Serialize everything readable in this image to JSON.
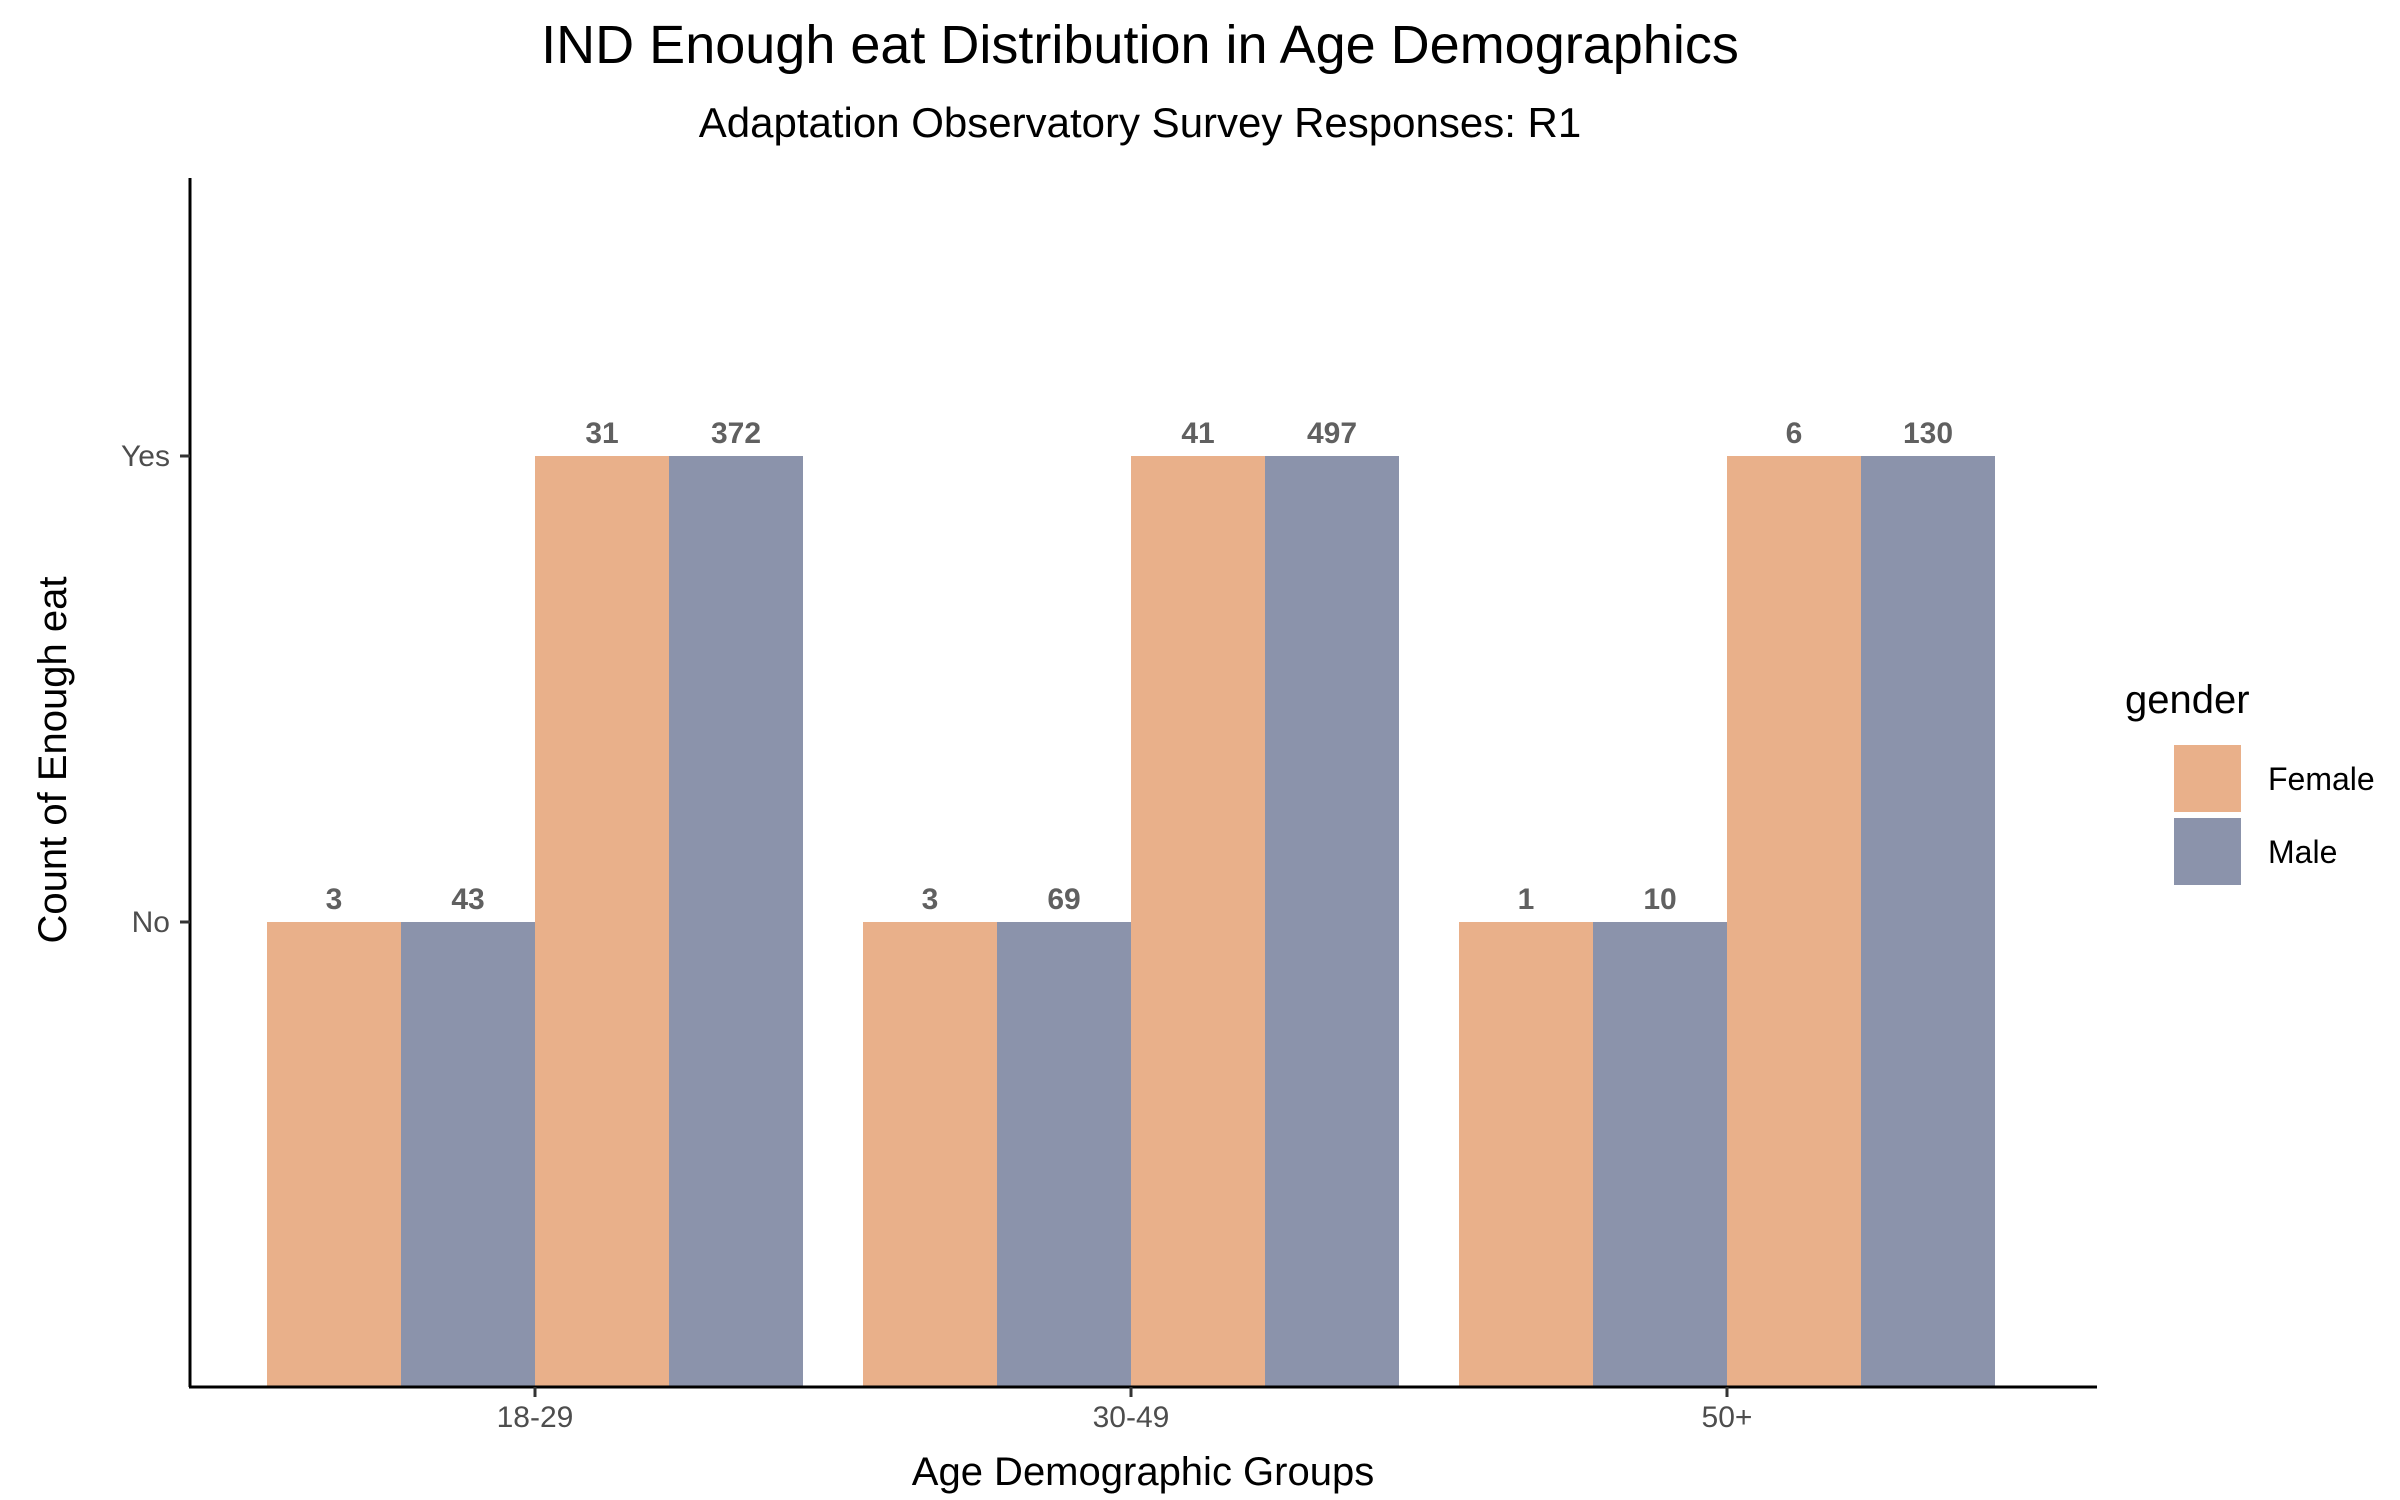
{
  "chart_data": {
    "type": "bar",
    "title": "IND Enough eat Distribution in Age Demographics",
    "subtitle": "Adaptation Observatory Survey Responses: R1",
    "xlabel": "Age Demographic Groups",
    "ylabel": "Count of Enough eat",
    "categories": [
      "18-29",
      "30-49",
      "50+"
    ],
    "y_levels": [
      "No",
      "Yes"
    ],
    "grid": false,
    "legend": {
      "title": "gender",
      "position": "right",
      "entries": [
        {
          "name": "Female",
          "color": "#e9b08a"
        },
        {
          "name": "Male",
          "color": "#8b93ab"
        }
      ]
    },
    "bars": [
      {
        "category": "18-29",
        "response": "No",
        "gender": "Female",
        "count": 3
      },
      {
        "category": "18-29",
        "response": "No",
        "gender": "Male",
        "count": 43
      },
      {
        "category": "18-29",
        "response": "Yes",
        "gender": "Female",
        "count": 31
      },
      {
        "category": "18-29",
        "response": "Yes",
        "gender": "Male",
        "count": 372
      },
      {
        "category": "30-49",
        "response": "No",
        "gender": "Female",
        "count": 3
      },
      {
        "category": "30-49",
        "response": "No",
        "gender": "Male",
        "count": 69
      },
      {
        "category": "30-49",
        "response": "Yes",
        "gender": "Female",
        "count": 41
      },
      {
        "category": "30-49",
        "response": "Yes",
        "gender": "Male",
        "count": 497
      },
      {
        "category": "50+",
        "response": "No",
        "gender": "Female",
        "count": 1
      },
      {
        "category": "50+",
        "response": "No",
        "gender": "Male",
        "count": 10
      },
      {
        "category": "50+",
        "response": "Yes",
        "gender": "Female",
        "count": 6
      },
      {
        "category": "50+",
        "response": "Yes",
        "gender": "Male",
        "count": 130
      }
    ]
  }
}
